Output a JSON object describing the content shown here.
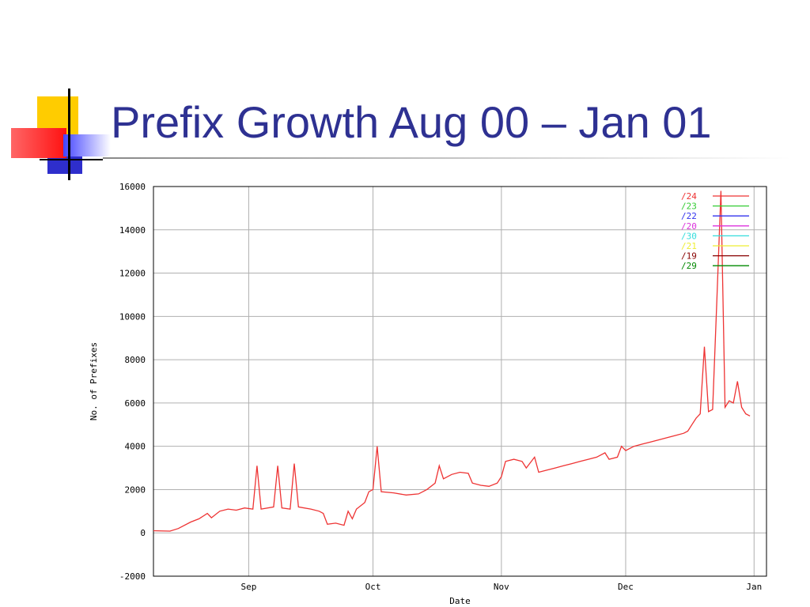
{
  "slide": {
    "title": "Prefix Growth Aug 00 – Jan 01"
  },
  "chart_data": {
    "type": "line",
    "xlabel": "Date",
    "ylabel": "No. of Prefixes",
    "ylim": [
      -2000,
      16000
    ],
    "yticks": [
      -2000,
      0,
      2000,
      4000,
      6000,
      8000,
      10000,
      12000,
      14000,
      16000
    ],
    "xlim": [
      "2000-08-09",
      "2001-01-04"
    ],
    "xticks": [
      {
        "label": "Sep",
        "date": "2000-09-01"
      },
      {
        "label": "Oct",
        "date": "2000-10-01"
      },
      {
        "label": "Nov",
        "date": "2000-11-01"
      },
      {
        "label": "Dec",
        "date": "2000-12-01"
      },
      {
        "label": "Jan",
        "date": "2001-01-01"
      }
    ],
    "grid": true,
    "legend": "top-right",
    "series": [
      {
        "name": "/24",
        "color": "#ee3333",
        "points": [
          [
            "2000-08-09",
            100
          ],
          [
            "2000-08-13",
            80
          ],
          [
            "2000-08-15",
            200
          ],
          [
            "2000-08-18",
            500
          ],
          [
            "2000-08-20",
            650
          ],
          [
            "2000-08-22",
            900
          ],
          [
            "2000-08-23",
            700
          ],
          [
            "2000-08-25",
            1000
          ],
          [
            "2000-08-27",
            1100
          ],
          [
            "2000-08-29",
            1050
          ],
          [
            "2000-08-31",
            1150
          ],
          [
            "2000-09-02",
            1100
          ],
          [
            "2000-09-03",
            3100
          ],
          [
            "2000-09-04",
            1100
          ],
          [
            "2000-09-07",
            1200
          ],
          [
            "2000-09-08",
            3100
          ],
          [
            "2000-09-09",
            1150
          ],
          [
            "2000-09-11",
            1100
          ],
          [
            "2000-09-12",
            3200
          ],
          [
            "2000-09-13",
            1200
          ],
          [
            "2000-09-16",
            1100
          ],
          [
            "2000-09-18",
            1000
          ],
          [
            "2000-09-19",
            900
          ],
          [
            "2000-09-20",
            400
          ],
          [
            "2000-09-22",
            450
          ],
          [
            "2000-09-24",
            350
          ],
          [
            "2000-09-25",
            1000
          ],
          [
            "2000-09-26",
            650
          ],
          [
            "2000-09-27",
            1100
          ],
          [
            "2000-09-29",
            1400
          ],
          [
            "2000-09-30",
            1900
          ],
          [
            "2000-10-01",
            2000
          ],
          [
            "2000-10-02",
            4000
          ],
          [
            "2000-10-03",
            1900
          ],
          [
            "2000-10-06",
            1850
          ],
          [
            "2000-10-09",
            1750
          ],
          [
            "2000-10-12",
            1800
          ],
          [
            "2000-10-14",
            2000
          ],
          [
            "2000-10-16",
            2300
          ],
          [
            "2000-10-17",
            3100
          ],
          [
            "2000-10-18",
            2500
          ],
          [
            "2000-10-20",
            2700
          ],
          [
            "2000-10-22",
            2800
          ],
          [
            "2000-10-24",
            2750
          ],
          [
            "2000-10-25",
            2300
          ],
          [
            "2000-10-27",
            2200
          ],
          [
            "2000-10-29",
            2150
          ],
          [
            "2000-10-31",
            2300
          ],
          [
            "2000-11-01",
            2600
          ],
          [
            "2000-11-02",
            3300
          ],
          [
            "2000-11-04",
            3400
          ],
          [
            "2000-11-06",
            3300
          ],
          [
            "2000-11-07",
            3000
          ],
          [
            "2000-11-09",
            3500
          ],
          [
            "2000-11-10",
            2800
          ],
          [
            "2000-11-12",
            2900
          ],
          [
            "2000-11-14",
            3000
          ],
          [
            "2000-11-16",
            3100
          ],
          [
            "2000-11-18",
            3200
          ],
          [
            "2000-11-20",
            3300
          ],
          [
            "2000-11-22",
            3400
          ],
          [
            "2000-11-24",
            3500
          ],
          [
            "2000-11-26",
            3700
          ],
          [
            "2000-11-27",
            3400
          ],
          [
            "2000-11-29",
            3500
          ],
          [
            "2000-11-30",
            4000
          ],
          [
            "2000-12-01",
            3800
          ],
          [
            "2000-12-03",
            4000
          ],
          [
            "2000-12-05",
            4100
          ],
          [
            "2000-12-07",
            4200
          ],
          [
            "2000-12-09",
            4300
          ],
          [
            "2000-12-11",
            4400
          ],
          [
            "2000-12-13",
            4500
          ],
          [
            "2000-12-15",
            4600
          ],
          [
            "2000-12-16",
            4700
          ],
          [
            "2000-12-17",
            5000
          ],
          [
            "2000-12-18",
            5300
          ],
          [
            "2000-12-19",
            5500
          ],
          [
            "2000-12-20",
            8600
          ],
          [
            "2000-12-21",
            5600
          ],
          [
            "2000-12-22",
            5700
          ],
          [
            "2000-12-23",
            10700
          ],
          [
            "2000-12-24",
            15800
          ],
          [
            "2000-12-25",
            5800
          ],
          [
            "2000-12-26",
            6100
          ],
          [
            "2000-12-27",
            6000
          ],
          [
            "2000-12-28",
            7000
          ],
          [
            "2000-12-29",
            5800
          ],
          [
            "2000-12-30",
            5500
          ],
          [
            "2000-12-31",
            5400
          ]
        ]
      },
      {
        "name": "/23",
        "color": "#33cc33",
        "points": []
      },
      {
        "name": "/22",
        "color": "#3333ee",
        "points": []
      },
      {
        "name": "/20",
        "color": "#dd33dd",
        "points": []
      },
      {
        "name": "/30",
        "color": "#33dddd",
        "points": []
      },
      {
        "name": "/21",
        "color": "#eeee33",
        "points": []
      },
      {
        "name": "/19",
        "color": "#880000",
        "points": []
      },
      {
        "name": "/29",
        "color": "#008800",
        "points": []
      }
    ]
  }
}
